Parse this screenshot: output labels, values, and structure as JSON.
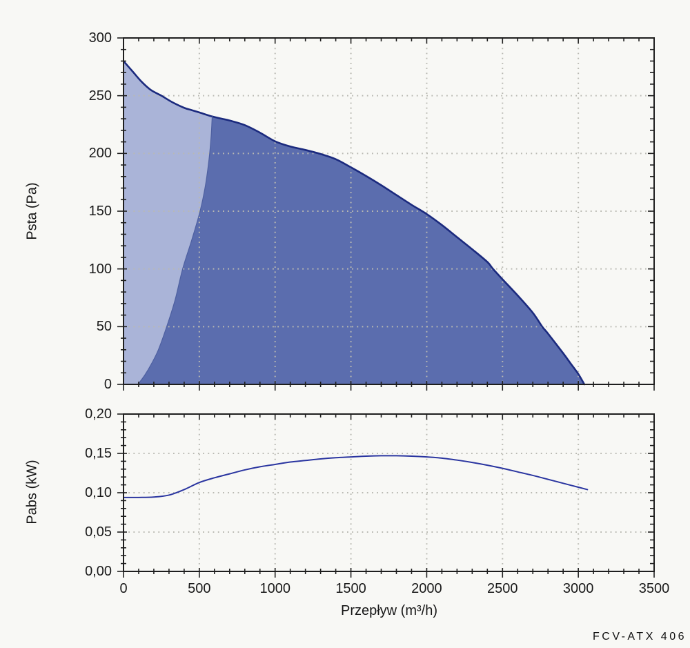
{
  "page": {
    "background": "#f8f8f5",
    "model_label": "FCV-ATX 406"
  },
  "chart_data": [
    {
      "id": "psta_vs_flow",
      "type": "area",
      "ylabel": "Psta (Pa)",
      "xlabel": "",
      "xlim": [
        0,
        3500
      ],
      "ylim": [
        0,
        300
      ],
      "x_ticks": [
        0,
        500,
        1000,
        1500,
        2000,
        2500,
        3000,
        3500
      ],
      "x_tick_labels": [
        "0",
        "500",
        "1000",
        "1500",
        "2000",
        "2500",
        "3000",
        "3500"
      ],
      "show_x_tick_labels": false,
      "x_minor_step": 100,
      "y_ticks": [
        0,
        50,
        100,
        150,
        200,
        250,
        300
      ],
      "y_tick_labels": [
        "0",
        "50",
        "100",
        "150",
        "200",
        "250",
        "300"
      ],
      "y_minor_step": 10,
      "grid": "dotted",
      "grid_color": "#b9b9b2",
      "area_fills": {
        "outside_range": "#aab4d8",
        "working_range": "#5b6dae"
      },
      "boundary_junction_x": 585,
      "series": [
        {
          "name": "max-pressure-curve",
          "color": "#1b2a7e",
          "width": 2.6,
          "x": [
            0,
            60,
            120,
            180,
            250,
            320,
            400,
            450,
            500,
            585,
            650,
            700,
            800,
            900,
            1000,
            1100,
            1200,
            1300,
            1400,
            1500,
            1600,
            1700,
            1800,
            1900,
            2000,
            2100,
            2200,
            2300,
            2400,
            2437,
            2500,
            2600,
            2700,
            2762,
            2800,
            2900,
            2950,
            3000,
            3040
          ],
          "y": [
            280,
            271,
            262,
            255,
            250,
            244.5,
            239.5,
            237.5,
            235.5,
            232,
            230,
            228.5,
            224.5,
            218,
            210.5,
            206,
            203,
            199.5,
            195,
            188,
            180.5,
            172.5,
            164,
            155.5,
            147.5,
            138,
            127.5,
            117,
            106,
            100,
            91,
            77,
            62,
            50,
            44,
            27,
            18,
            9,
            0
          ]
        },
        {
          "name": "min-flow-boundary",
          "color": "#4e60a0",
          "width": 1.2,
          "x": [
            95,
            140,
            185,
            230,
            285,
            340,
            390,
            450,
            505,
            540,
            565,
            578,
            585
          ],
          "y": [
            0,
            8,
            18,
            30,
            50,
            73,
            100,
            125,
            150,
            172,
            196,
            215,
            232
          ]
        }
      ]
    },
    {
      "id": "pabs_vs_flow",
      "type": "line",
      "ylabel": "Pabs (kW)",
      "xlabel": "Przepływ (m³/h)",
      "xlim": [
        0,
        3500
      ],
      "ylim": [
        0,
        0.2
      ],
      "x_ticks": [
        0,
        500,
        1000,
        1500,
        2000,
        2500,
        3000,
        3500
      ],
      "x_tick_labels": [
        "0",
        "500",
        "1000",
        "1500",
        "2000",
        "2500",
        "3000",
        "3500"
      ],
      "show_x_tick_labels": true,
      "x_minor_step": 100,
      "y_ticks": [
        0,
        0.05,
        0.1,
        0.15,
        0.2
      ],
      "y_tick_labels": [
        "0,00",
        "0,05",
        "0,10",
        "0,15",
        "0,20"
      ],
      "y_minor_step": 0.01,
      "grid": "dotted",
      "grid_color": "#b9b9b2",
      "series": [
        {
          "name": "absorbed-power-curve",
          "color": "#2a35a0",
          "width": 2,
          "x": [
            0,
            100,
            200,
            300,
            400,
            500,
            600,
            700,
            800,
            900,
            1000,
            1100,
            1200,
            1300,
            1400,
            1500,
            1600,
            1700,
            1800,
            1900,
            2000,
            2100,
            2200,
            2300,
            2400,
            2500,
            2600,
            2700,
            2800,
            2900,
            3000,
            3060
          ],
          "y": [
            0.094,
            0.094,
            0.0945,
            0.097,
            0.104,
            0.113,
            0.119,
            0.124,
            0.129,
            0.133,
            0.136,
            0.139,
            0.141,
            0.143,
            0.1445,
            0.1455,
            0.1465,
            0.147,
            0.147,
            0.1465,
            0.1455,
            0.144,
            0.1415,
            0.1385,
            0.135,
            0.131,
            0.1265,
            0.122,
            0.117,
            0.112,
            0.107,
            0.104
          ]
        }
      ]
    }
  ]
}
